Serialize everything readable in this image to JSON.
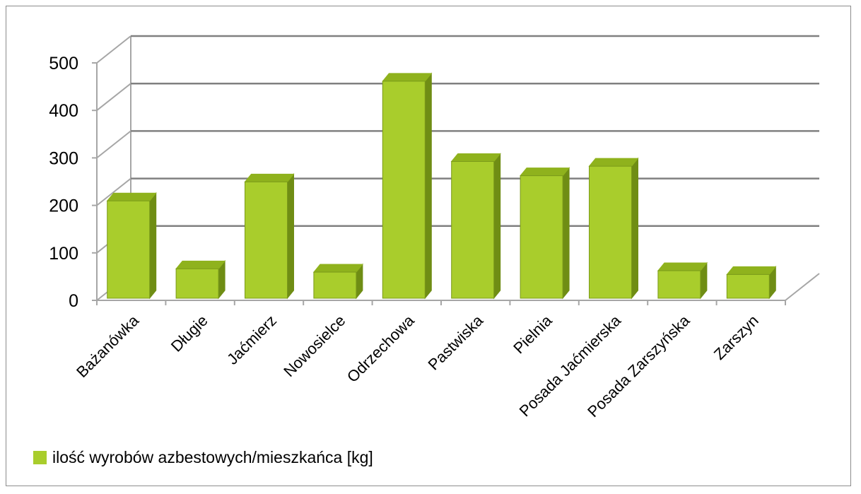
{
  "chart_data": {
    "type": "bar",
    "title": "",
    "xlabel": "",
    "ylabel": "",
    "categories": [
      "Bażanówka",
      "Długie",
      "Jaćmierz",
      "Nowosielce",
      "Odrzechowa",
      "Pastwiska",
      "Pielnia",
      "Posada Jaćmierska",
      "Posada Zarszyńska",
      "Zarszyn"
    ],
    "series": [
      {
        "name": "ilość wyrobów azbestowych/mieszkańca [kg]",
        "values": [
          205,
          62,
          245,
          55,
          457,
          288,
          258,
          278,
          58,
          50
        ]
      }
    ],
    "ylim": [
      0,
      500
    ],
    "yticks": [
      "0",
      "100",
      "200",
      "300",
      "400",
      "500"
    ],
    "grid": true,
    "legend_position": "bottom-left",
    "style": "3d-column",
    "colors": {
      "bar_front": "#a9cd2c",
      "bar_top": "#8fb21d",
      "bar_side": "#6f8d14",
      "bar_edge": "#7a9a1a",
      "gridline": "#808080",
      "axis": "#a6a6a6"
    }
  }
}
